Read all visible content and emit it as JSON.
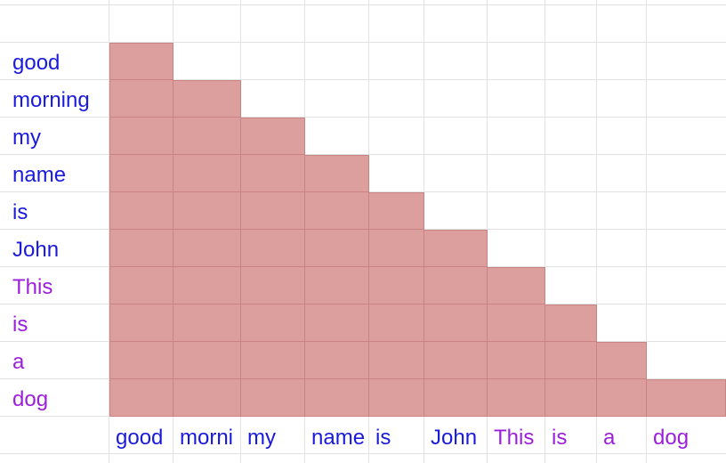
{
  "colors": {
    "cell_fill": "#dd9e9e",
    "cell_border": "#c98383",
    "gridline": "#e2e2e2",
    "label_blue": "#1a1adb",
    "label_purple": "#9b1fdb"
  },
  "row_labels": [
    {
      "text": "good",
      "color": "#1a1adb"
    },
    {
      "text": "morning",
      "color": "#1a1adb"
    },
    {
      "text": "my",
      "color": "#1a1adb"
    },
    {
      "text": "name",
      "color": "#1a1adb"
    },
    {
      "text": "is",
      "color": "#1a1adb"
    },
    {
      "text": "John",
      "color": "#1a1adb"
    },
    {
      "text": "This",
      "color": "#9b1fdb"
    },
    {
      "text": "is",
      "color": "#9b1fdb"
    },
    {
      "text": "a",
      "color": "#9b1fdb"
    },
    {
      "text": "dog",
      "color": "#9b1fdb"
    }
  ],
  "column_labels": [
    {
      "text": "good",
      "color": "#1a1adb"
    },
    {
      "text": "morni",
      "color": "#1a1adb"
    },
    {
      "text": "my",
      "color": "#1a1adb"
    },
    {
      "text": "name",
      "color": "#1a1adb"
    },
    {
      "text": "is",
      "color": "#1a1adb"
    },
    {
      "text": "John",
      "color": "#1a1adb"
    },
    {
      "text": "This",
      "color": "#9b1fdb"
    },
    {
      "text": "is",
      "color": "#9b1fdb"
    },
    {
      "text": "a",
      "color": "#9b1fdb"
    },
    {
      "text": "dog",
      "color": "#9b1fdb"
    }
  ],
  "mask": {
    "type": "lower-triangular",
    "size": 10
  }
}
